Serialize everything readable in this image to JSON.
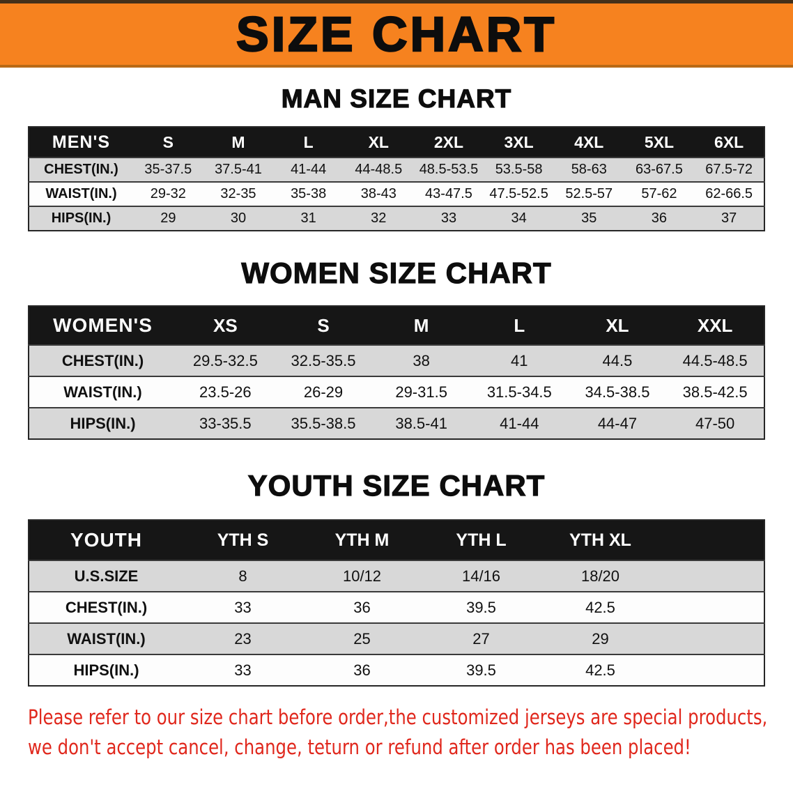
{
  "banner": {
    "title": "SIZE CHART"
  },
  "colors": {
    "banner_orange": "#f6821f",
    "notice_red": "#e0271c",
    "header_black": "#161616",
    "row_gray": "#d8d8d8"
  },
  "chart_data": [
    {
      "type": "table",
      "title": "MAN SIZE CHART",
      "header": [
        "MEN'S",
        "S",
        "M",
        "L",
        "XL",
        "2XL",
        "3XL",
        "4XL",
        "5XL",
        "6XL"
      ],
      "rows": [
        [
          "CHEST(IN.)",
          "35-37.5",
          "37.5-41",
          "41-44",
          "44-48.5",
          "48.5-53.5",
          "53.5-58",
          "58-63",
          "63-67.5",
          "67.5-72"
        ],
        [
          "WAIST(IN.)",
          "29-32",
          "32-35",
          "35-38",
          "38-43",
          "43-47.5",
          "47.5-52.5",
          "52.5-57",
          "57-62",
          "62-66.5"
        ],
        [
          "HIPS(IN.)",
          "29",
          "30",
          "31",
          "32",
          "33",
          "34",
          "35",
          "36",
          "37"
        ]
      ]
    },
    {
      "type": "table",
      "title": "WOMEN SIZE CHART",
      "header": [
        "WOMEN'S",
        "XS",
        "S",
        "M",
        "L",
        "XL",
        "XXL"
      ],
      "rows": [
        [
          "CHEST(IN.)",
          "29.5-32.5",
          "32.5-35.5",
          "38",
          "41",
          "44.5",
          "44.5-48.5"
        ],
        [
          "WAIST(IN.)",
          "23.5-26",
          "26-29",
          "29-31.5",
          "31.5-34.5",
          "34.5-38.5",
          "38.5-42.5"
        ],
        [
          "HIPS(IN.)",
          "33-35.5",
          "35.5-38.5",
          "38.5-41",
          "41-44",
          "44-47",
          "47-50"
        ]
      ]
    },
    {
      "type": "table",
      "title": "YOUTH SIZE CHART",
      "header": [
        "YOUTH",
        "YTH S",
        "YTH M",
        "YTH L",
        "YTH XL"
      ],
      "trailing_filler": true,
      "rows": [
        [
          "U.S.SIZE",
          "8",
          "10/12",
          "14/16",
          "18/20"
        ],
        [
          "CHEST(IN.)",
          "33",
          "36",
          "39.5",
          "42.5"
        ],
        [
          "WAIST(IN.)",
          "23",
          "25",
          "27",
          "29"
        ],
        [
          "HIPS(IN.)",
          "33",
          "36",
          "39.5",
          "42.5"
        ]
      ]
    }
  ],
  "footer": {
    "lines": [
      "Please refer to our size chart before order,the customized jerseys are special products,",
      "we don't accept cancel, change, teturn or refund after order has been placed!"
    ]
  }
}
